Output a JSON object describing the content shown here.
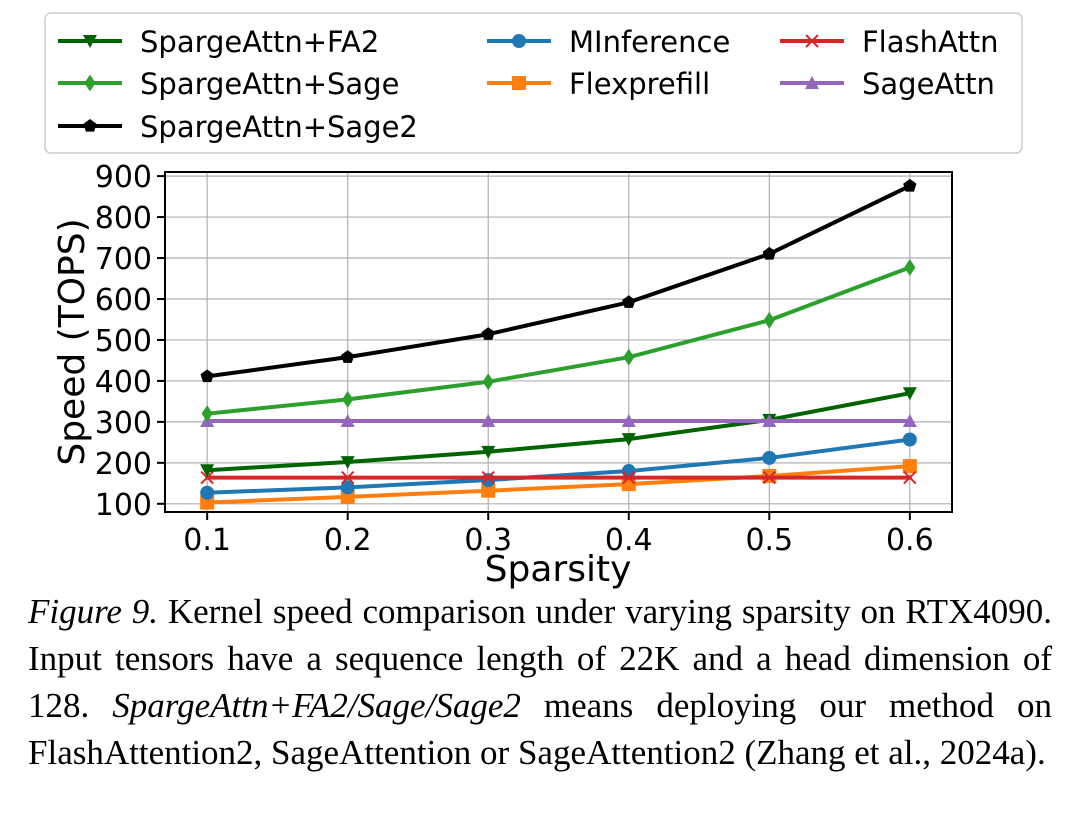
{
  "chart_data": {
    "type": "line",
    "xlabel": "Sparsity",
    "ylabel": "Speed (TOPS)",
    "x": [
      0.1,
      0.2,
      0.3,
      0.4,
      0.5,
      0.6
    ],
    "x_ticks": [
      "0.1",
      "0.2",
      "0.3",
      "0.4",
      "0.5",
      "0.6"
    ],
    "y_ticks": [
      "100",
      "200",
      "300",
      "400",
      "500",
      "600",
      "700",
      "800",
      "900"
    ],
    "xlim": [
      0.07,
      0.63
    ],
    "ylim": [
      80,
      910
    ],
    "grid": true,
    "legend_position": "top",
    "series": [
      {
        "name": "SpargeAttn+FA2",
        "color": "#006400",
        "marker": "triangle-down",
        "values": [
          182,
          202,
          227,
          258,
          305,
          370
        ]
      },
      {
        "name": "MInference",
        "color": "#1f77b4",
        "marker": "circle",
        "values": [
          127,
          140,
          158,
          180,
          212,
          257
        ]
      },
      {
        "name": "FlashAttn",
        "color": "#d62728",
        "marker": "x",
        "values": [
          164,
          164,
          164,
          164,
          164,
          164
        ]
      },
      {
        "name": "SpargeAttn+Sage",
        "color": "#2ca02c",
        "marker": "diamond",
        "values": [
          320,
          355,
          398,
          458,
          548,
          677
        ]
      },
      {
        "name": "Flexprefill",
        "color": "#ff7f0e",
        "marker": "square",
        "values": [
          103,
          117,
          132,
          148,
          168,
          192
        ]
      },
      {
        "name": "SageAttn",
        "color": "#9467bd",
        "marker": "triangle-up",
        "values": [
          302,
          302,
          302,
          302,
          302,
          302
        ]
      },
      {
        "name": "SpargeAttn+Sage2",
        "color": "#000000",
        "marker": "pentagon",
        "values": [
          411,
          458,
          514,
          592,
          710,
          876
        ]
      }
    ]
  },
  "caption": {
    "label": "Figure 9.",
    "part1": " Kernel speed comparison under varying sparsity on RTX4090.  Input tensors have a sequence length of 22K and a head dimension of 128. ",
    "methods": "SpargeAttn+FA2/Sage/Sage2",
    "part2": " means deploying our method on FlashAttention2, SageAttention or SageAttention2 (Zhang et al., 2024a)."
  }
}
